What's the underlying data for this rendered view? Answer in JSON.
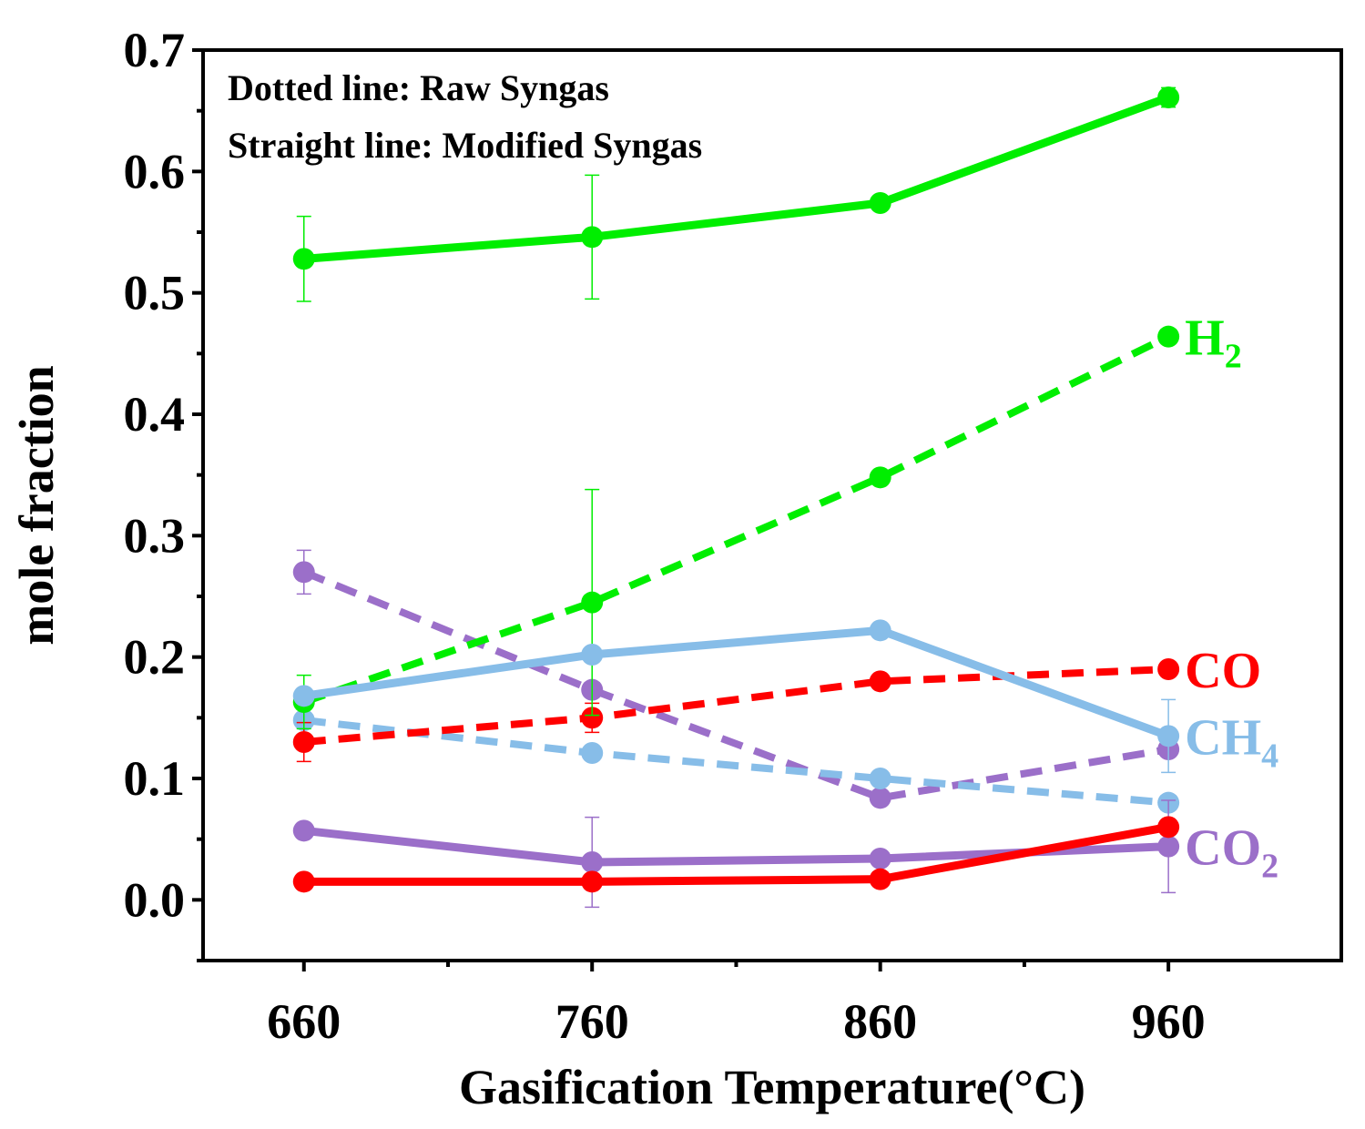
{
  "chart_data": {
    "type": "line",
    "xlabel": "Gasification Temperature(°C)",
    "ylabel": "mole fraction",
    "x": [
      660,
      760,
      860,
      960
    ],
    "xlim": [
      625,
      1020
    ],
    "ylim": [
      -0.05,
      0.7
    ],
    "yticks": [
      "0.0",
      "0.1",
      "0.2",
      "0.3",
      "0.4",
      "0.5",
      "0.6",
      "0.7"
    ],
    "xticks": [
      "660",
      "760",
      "860",
      "960"
    ],
    "annotations": [
      "Dotted line: Raw Syngas",
      "Straight line: Modified Syngas"
    ],
    "grid": false,
    "series": [
      {
        "key": "h2-raw",
        "style": "dotted",
        "color": "#00ee00",
        "values": [
          0.163,
          0.245,
          0.348,
          0.464
        ],
        "errors": [
          0.022,
          0.093,
          0,
          0
        ]
      },
      {
        "key": "h2-mod",
        "style": "solid",
        "color": "#00ee00",
        "values": [
          0.528,
          0.546,
          0.574,
          0.661
        ],
        "errors": [
          0.035,
          0.051,
          0,
          0.008
        ]
      },
      {
        "key": "co-raw",
        "style": "dotted",
        "color": "#ff0000",
        "values": [
          0.13,
          0.15,
          0.18,
          0.19
        ],
        "errors": [
          0.016,
          0.012,
          0,
          0
        ]
      },
      {
        "key": "co-mod",
        "style": "solid",
        "color": "#ff0000",
        "values": [
          0.015,
          0.015,
          0.017,
          0.06
        ],
        "errors": [
          0,
          0,
          0,
          0
        ]
      },
      {
        "key": "ch4-raw",
        "style": "dotted",
        "color": "#87bde8",
        "values": [
          0.148,
          0.121,
          0.1,
          0.08
        ],
        "errors": [
          0,
          0,
          0,
          0
        ]
      },
      {
        "key": "ch4-mod",
        "style": "solid",
        "color": "#87bde8",
        "values": [
          0.168,
          0.202,
          0.222,
          0.135
        ],
        "errors": [
          0,
          0,
          0,
          0.03
        ]
      },
      {
        "key": "co2-raw",
        "style": "dotted",
        "color": "#9b6fc9",
        "values": [
          0.27,
          0.173,
          0.084,
          0.124
        ],
        "errors": [
          0.018,
          0,
          0,
          0
        ]
      },
      {
        "key": "co2-mod",
        "style": "solid",
        "color": "#9b6fc9",
        "values": [
          0.057,
          0.031,
          0.034,
          0.044
        ],
        "errors": [
          0,
          0.037,
          0,
          0.038
        ]
      }
    ],
    "labels": [
      {
        "name": "H",
        "sub": "2",
        "color": "#00ee00",
        "anchor_series": "h2-raw"
      },
      {
        "name": "CO",
        "sub": "",
        "color": "#ff0000",
        "anchor_series": "co-raw"
      },
      {
        "name": "CH",
        "sub": "4",
        "color": "#87bde8",
        "anchor_series": "ch4-mod"
      },
      {
        "name": "CO",
        "sub": "2",
        "color": "#9b6fc9",
        "anchor_series": "co2-mod"
      }
    ]
  }
}
